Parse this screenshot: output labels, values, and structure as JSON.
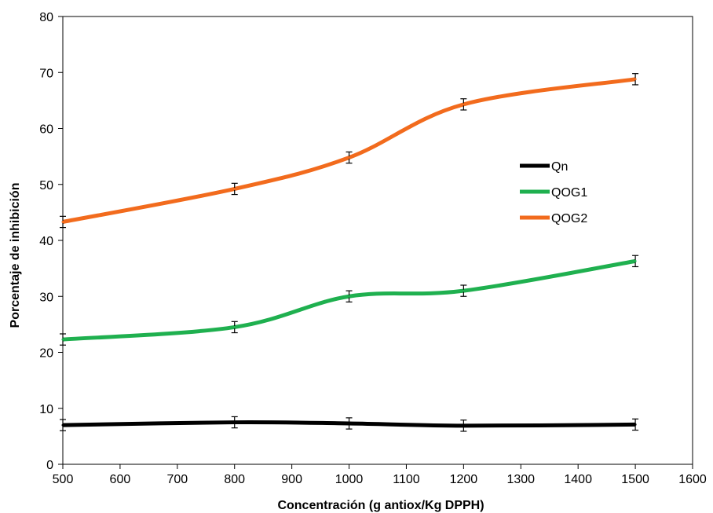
{
  "chart_data": {
    "type": "line",
    "title": "",
    "xlabel": "Concentración (g antiox/Kg DPPH)",
    "ylabel": "Porcentaje de inhibición",
    "xlim": [
      500,
      1600
    ],
    "ylim": [
      0,
      80
    ],
    "x_ticks": [
      500,
      600,
      700,
      800,
      900,
      1000,
      1100,
      1200,
      1300,
      1400,
      1500,
      1600
    ],
    "y_ticks": [
      0,
      10,
      20,
      30,
      40,
      50,
      60,
      70,
      80
    ],
    "grid": false,
    "legend_position": "right",
    "x": [
      500,
      800,
      1000,
      1200,
      1500
    ],
    "series": [
      {
        "name": "Qn",
        "color": "#000000",
        "values": [
          7.0,
          7.5,
          7.3,
          6.9,
          7.1
        ],
        "errors": [
          1.0,
          1.0,
          1.0,
          1.0,
          1.0
        ]
      },
      {
        "name": "QOG1",
        "color": "#1fb04f",
        "values": [
          22.3,
          24.5,
          30.0,
          31.0,
          36.3
        ],
        "errors": [
          1.0,
          1.0,
          1.0,
          1.0,
          1.0
        ]
      },
      {
        "name": "QOG2",
        "color": "#f26b1d",
        "values": [
          43.3,
          49.2,
          54.8,
          64.3,
          68.8
        ],
        "errors": [
          1.0,
          1.0,
          1.0,
          1.0,
          1.0
        ]
      }
    ]
  }
}
